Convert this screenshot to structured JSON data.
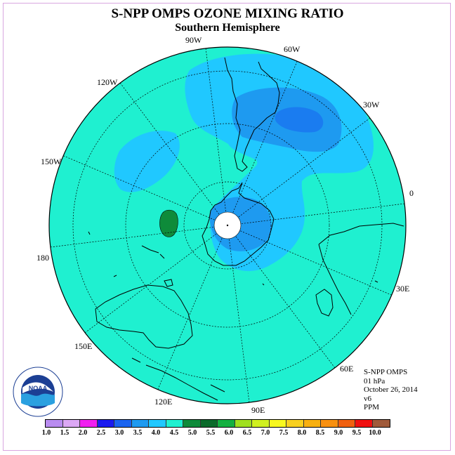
{
  "header": {
    "title": "S-NPP OMPS OZONE MIXING RATIO",
    "subtitle": "Southern Hemisphere"
  },
  "map": {
    "projection": "polar stereographic",
    "hemisphere": "south",
    "longitude_labels": [
      {
        "text": "90W"
      },
      {
        "text": "60W"
      },
      {
        "text": "120W"
      },
      {
        "text": "30W"
      },
      {
        "text": "150W"
      },
      {
        "text": "0"
      },
      {
        "text": "180"
      },
      {
        "text": "30E"
      },
      {
        "text": "150E"
      },
      {
        "text": "60E"
      },
      {
        "text": "120E"
      },
      {
        "text": "90E"
      }
    ],
    "background_level_color": "#1ff0d0",
    "elevated_region_color": "#20c8ff",
    "high_region_color": "#1e9af0",
    "peak_region_color": "#1a7cf0",
    "local_max_color": "#0e8b3a",
    "no_data_color": "#ffffff"
  },
  "info": {
    "instrument": "S-NPP OMPS",
    "level": "01 hPa",
    "date": "October 26, 2014",
    "version": "v6",
    "units": "PPM"
  },
  "logo": {
    "text": "NOAA"
  },
  "colorbar": {
    "colors": [
      "#b98cf0",
      "#dca8f5",
      "#f020f0",
      "#1a1af0",
      "#1a64f0",
      "#1e9af0",
      "#20c8ff",
      "#1ff0d0",
      "#0e8b3a",
      "#0a6a2a",
      "#14b040",
      "#a0e020",
      "#d0f020",
      "#f8f820",
      "#f8d020",
      "#f8b010",
      "#f89010",
      "#f06010",
      "#f01010",
      "#a05a3a"
    ],
    "ticks": [
      "1.0",
      "1.5",
      "2.0",
      "2.5",
      "3.0",
      "3.5",
      "4.0",
      "4.5",
      "5.0",
      "5.5",
      "6.0",
      "6.5",
      "7.0",
      "7.5",
      "8.0",
      "8.5",
      "9.0",
      "9.5",
      "10.0"
    ]
  }
}
